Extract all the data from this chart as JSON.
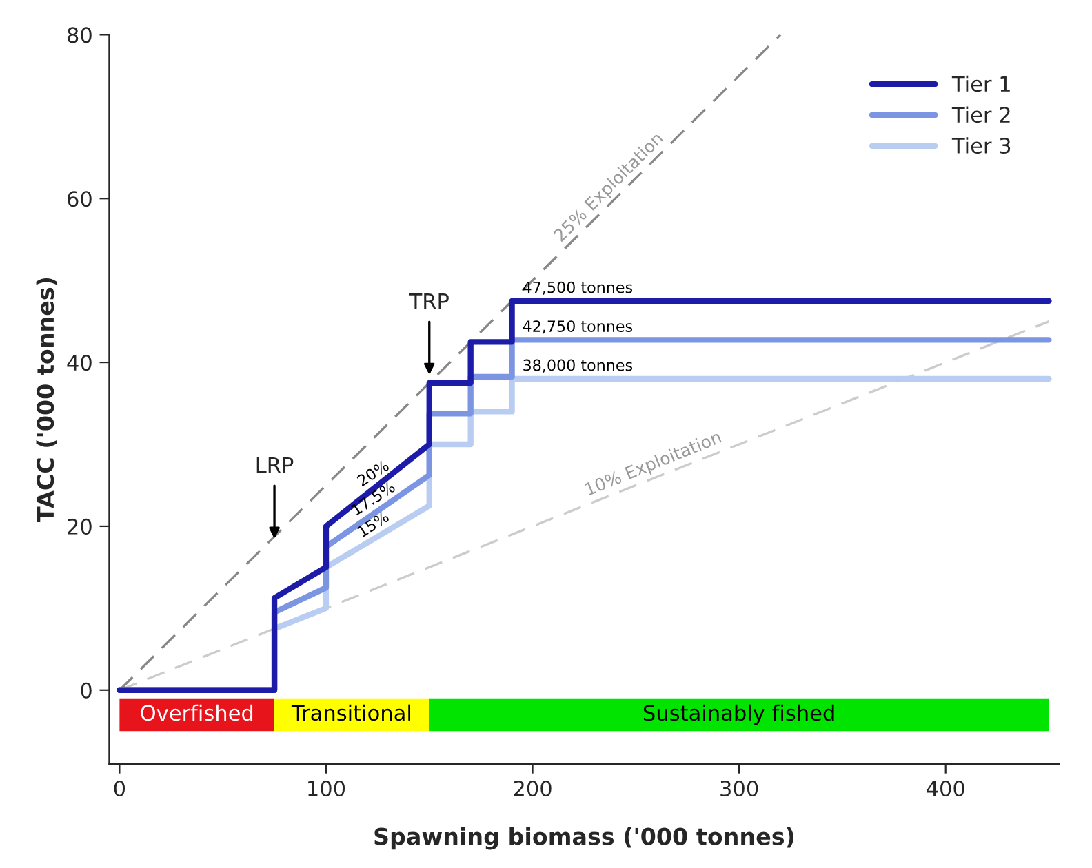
{
  "chart_data": {
    "type": "line",
    "xlabel": "Spawning biomass ('000 tonnes)",
    "ylabel": "TACC ('000 tonnes)",
    "xlim": [
      -5,
      455
    ],
    "ylim": [
      -9,
      80
    ],
    "xticks": [
      0,
      100,
      200,
      300,
      400
    ],
    "yticks": [
      0,
      20,
      40,
      60,
      80
    ],
    "grid": false,
    "legend": "top right",
    "line_style": "solid",
    "marker": "none",
    "series": [
      {
        "name": null,
        "color": "#888888",
        "line_style": "dashed",
        "x": [
          0,
          320
        ],
        "values": [
          0,
          80
        ]
      },
      {
        "name": null,
        "color": "#cccccc",
        "line_style": "dashed",
        "x": [
          0,
          450
        ],
        "values": [
          0,
          45
        ]
      },
      {
        "name": "Tier 3",
        "color": "#b9cdf2",
        "x": [
          0,
          75,
          75,
          100,
          100,
          150,
          150,
          170,
          170,
          190,
          190,
          450
        ],
        "values": [
          0,
          0,
          7.5,
          10,
          15,
          22.5,
          30,
          30,
          34,
          34,
          38,
          38
        ]
      },
      {
        "name": "Tier 2",
        "color": "#7c95e3",
        "x": [
          0,
          75,
          75,
          100,
          100,
          150,
          150,
          170,
          170,
          190,
          190,
          450
        ],
        "values": [
          0,
          0,
          9.5,
          12.5,
          17.5,
          26.25,
          33.75,
          33.75,
          38.25,
          38.25,
          42.75,
          42.75
        ]
      },
      {
        "name": "Tier 1",
        "color": "#1c1ca8",
        "x": [
          0,
          75,
          75,
          100,
          100,
          150,
          150,
          170,
          170,
          190,
          190,
          450
        ],
        "values": [
          0,
          0,
          11.25,
          15,
          20,
          30,
          37.5,
          37.5,
          42.5,
          42.5,
          47.5,
          47.5
        ]
      }
    ],
    "bands": [
      {
        "axis": "x",
        "from": 0,
        "to": 75,
        "label": "Overfished",
        "color": "#e8141c"
      },
      {
        "axis": "x",
        "from": 75,
        "to": 150,
        "label": "Transitional",
        "color": "#ffff00"
      },
      {
        "axis": "x",
        "from": 150,
        "to": 450,
        "label": "Sustainably fished",
        "color": "#00e400"
      }
    ],
    "annotations": [
      {
        "text": "LRP",
        "x": 75,
        "y": 18
      },
      {
        "text": "TRP",
        "x": 150,
        "y": 38
      },
      {
        "text": "47,500 tonnes",
        "x": 195,
        "y": 47.5
      },
      {
        "text": "42,750 tonnes",
        "x": 195,
        "y": 42.75
      },
      {
        "text": "38,000 tonnes",
        "x": 195,
        "y": 38
      },
      {
        "text": "20%",
        "x": 125,
        "y": 25
      },
      {
        "text": "17.5%",
        "x": 125,
        "y": 21.9
      },
      {
        "text": "15%",
        "x": 125,
        "y": 18.75
      },
      {
        "text": "25% Exploitation",
        "x": 240,
        "y": 60
      },
      {
        "text": "10% Exploitation",
        "x": 260,
        "y": 26
      }
    ]
  }
}
